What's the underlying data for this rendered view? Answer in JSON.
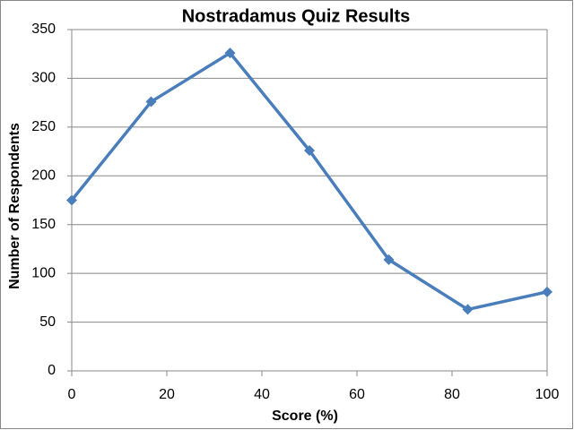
{
  "chart_data": {
    "type": "line",
    "title": "Nostradamus Quiz Results",
    "x_label": "Score (%)",
    "y_label": "Number of Respondents",
    "x": [
      0,
      16.7,
      33.3,
      50,
      66.7,
      83.3,
      100
    ],
    "series": [
      {
        "name": "Respondents",
        "color": "#4a7ebb",
        "values": [
          175,
          276,
          326,
          226,
          114,
          63,
          81
        ]
      }
    ],
    "xlim": [
      0,
      100
    ],
    "xticks": [
      0,
      20,
      40,
      60,
      80,
      100
    ],
    "ylim": [
      0,
      350
    ],
    "yticks": [
      0,
      50,
      100,
      150,
      200,
      250,
      300,
      350
    ],
    "grid": true,
    "legend": false
  }
}
